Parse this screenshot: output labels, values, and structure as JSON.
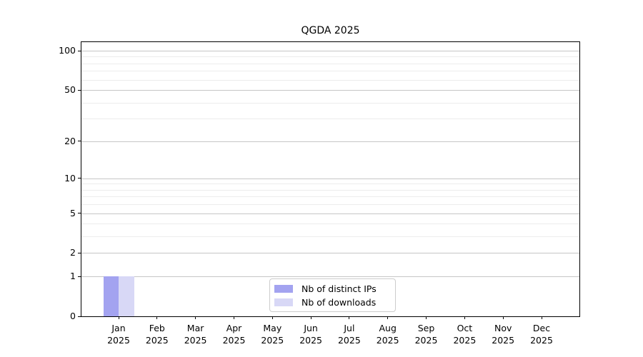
{
  "chart_data": {
    "type": "bar",
    "title": "QGDA 2025",
    "categories": [
      "Jan 2025",
      "Feb 2025",
      "Mar 2025",
      "Apr 2025",
      "May 2025",
      "Jun 2025",
      "Jul 2025",
      "Aug 2025",
      "Sep 2025",
      "Oct 2025",
      "Nov 2025",
      "Dec 2025"
    ],
    "series": [
      {
        "name": "Nb of distinct IPs",
        "color": "#a3a3f0",
        "values": [
          1,
          0,
          0,
          0,
          0,
          0,
          0,
          0,
          0,
          0,
          0,
          0
        ]
      },
      {
        "name": "Nb of downloads",
        "color": "#d8d8f6",
        "values": [
          1,
          0,
          0,
          0,
          0,
          0,
          0,
          0,
          0,
          0,
          0,
          0
        ]
      }
    ],
    "yscale": "log1p",
    "y_major_ticks": [
      0,
      1,
      2,
      5,
      10,
      20,
      50,
      100
    ],
    "y_minor_ticks": [
      3,
      4,
      6,
      7,
      8,
      9,
      30,
      40,
      60,
      70,
      80,
      90
    ],
    "ylim": [
      0,
      116
    ],
    "xlabel": "",
    "ylabel": "",
    "grid": "horizontal",
    "legend_position": "lower center inside"
  }
}
